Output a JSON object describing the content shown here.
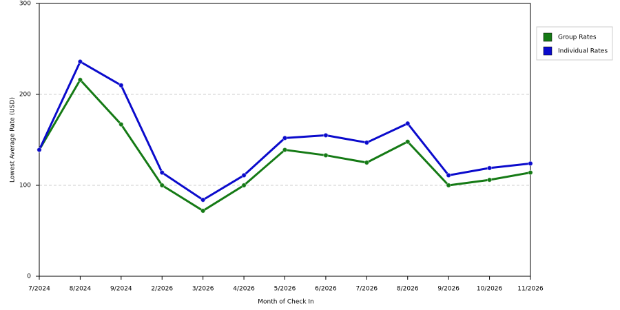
{
  "chart_data": {
    "type": "line",
    "x_label": "Month of Check In",
    "y_label": "Lowest Average Rate (USD)",
    "categories": [
      "7/2024",
      "8/2024",
      "9/2024",
      "2/2026",
      "3/2026",
      "4/2026",
      "5/2026",
      "6/2026",
      "7/2026",
      "8/2026",
      "9/2026",
      "10/2026",
      "11/2026"
    ],
    "series": [
      {
        "name": "Group Rates",
        "color": "#157a15",
        "values": [
          139,
          216,
          167,
          100,
          72,
          100,
          139,
          133,
          125,
          148,
          100,
          106,
          114
        ]
      },
      {
        "name": "Individual Rates",
        "color": "#0b0bcc",
        "values": [
          139,
          236,
          210,
          114,
          84,
          111,
          152,
          155,
          147,
          168,
          111,
          119,
          124
        ]
      }
    ],
    "ylim": [
      0,
      300
    ],
    "yticks": [
      0,
      100,
      200,
      300
    ],
    "grid": true,
    "legend": "right"
  }
}
